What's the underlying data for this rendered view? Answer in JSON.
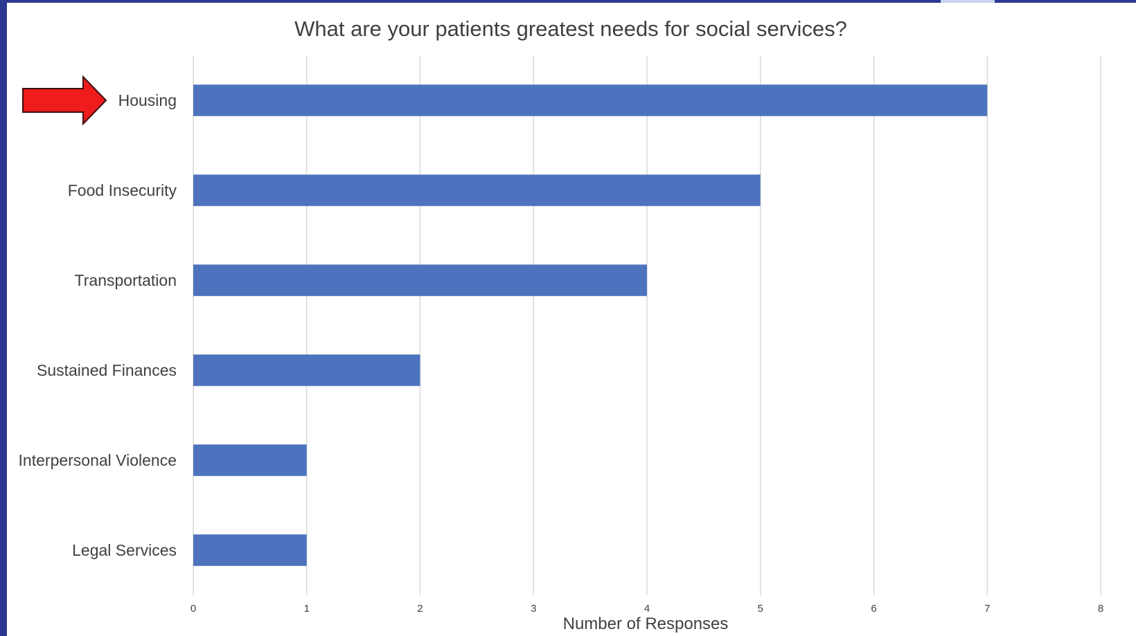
{
  "chart_data": {
    "type": "bar",
    "orientation": "horizontal",
    "title": "What are your patients greatest needs for social services?",
    "xlabel": "Number of Responses",
    "ylabel": "",
    "categories": [
      "Housing",
      "Food Insecurity",
      "Transportation",
      "Sustained Finances",
      "Interpersonal Violence",
      "Legal Services"
    ],
    "values": [
      7,
      5,
      4,
      2,
      1,
      1
    ],
    "xlim": [
      0,
      8
    ],
    "xticks": [
      "0",
      "1",
      "2",
      "3",
      "4",
      "5",
      "6",
      "7",
      "8"
    ],
    "grid": true,
    "legend": "none",
    "highlight": {
      "category": "Housing",
      "marker": "red-arrow"
    },
    "colors": {
      "bar": "#4e73be",
      "grid": "#d9d9d9",
      "text": "#404040",
      "arrow": "#ee1c1c",
      "frame": "#2b3990"
    }
  }
}
